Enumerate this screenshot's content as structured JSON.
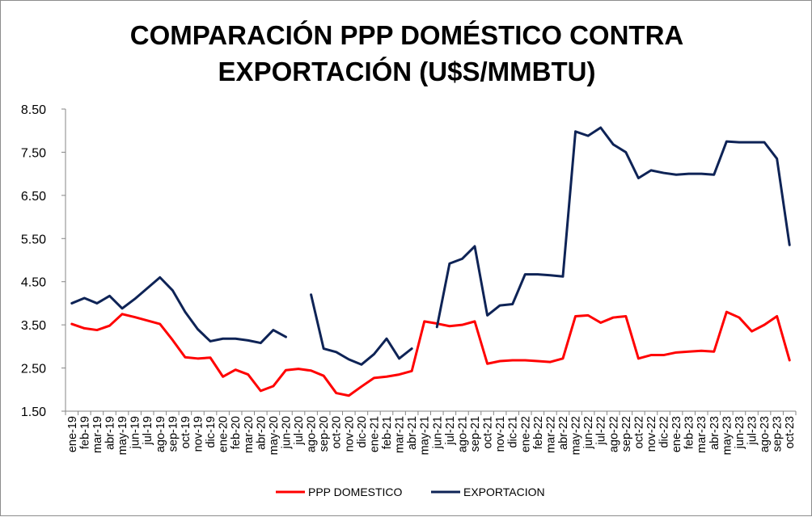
{
  "chart_data": {
    "type": "line",
    "title_lines": [
      "COMPARACIÓN PPP DOMÉSTICO CONTRA",
      "EXPORTACIÓN (U$S/MMBTU)"
    ],
    "xlabel": "",
    "ylabel": "",
    "ylim": [
      1.5,
      8.5
    ],
    "yticks": [
      "1.50",
      "2.50",
      "3.50",
      "4.50",
      "5.50",
      "6.50",
      "7.50",
      "8.50"
    ],
    "grid": false,
    "legend_position": "bottom",
    "categories": [
      "ene-19",
      "feb-19",
      "mar-19",
      "abr-19",
      "may-19",
      "jun-19",
      "jul-19",
      "ago-19",
      "sep-19",
      "oct-19",
      "nov-19",
      "dic-19",
      "ene-20",
      "feb-20",
      "mar-20",
      "abr-20",
      "may-20",
      "jun-20",
      "jul-20",
      "ago-20",
      "sep-20",
      "oct-20",
      "nov-20",
      "dic-20",
      "ene-21",
      "feb-21",
      "mar-21",
      "abr-21",
      "may-21",
      "jun-21",
      "jul-21",
      "ago-21",
      "sep-21",
      "oct-21",
      "nov-21",
      "dic-21",
      "ene-22",
      "feb-22",
      "mar-22",
      "abr-22",
      "may-22",
      "jun-22",
      "jul-22",
      "ago-22",
      "sep-22",
      "oct-22",
      "nov-22",
      "dic-22",
      "ene-23",
      "feb-23",
      "mar-23",
      "abr-23",
      "may-23",
      "jun-23",
      "jul-23",
      "ago-23",
      "sep-23",
      "oct-23"
    ],
    "series": [
      {
        "name": "PPP DOMESTICO",
        "color": "#ff0000",
        "values": [
          3.52,
          3.42,
          3.38,
          3.48,
          3.75,
          3.68,
          3.6,
          3.52,
          3.15,
          2.75,
          2.72,
          2.74,
          2.3,
          2.46,
          2.35,
          1.97,
          2.08,
          2.45,
          2.48,
          2.44,
          2.32,
          1.92,
          1.86,
          2.07,
          2.27,
          2.3,
          2.35,
          2.43,
          3.58,
          3.53,
          3.47,
          3.5,
          3.58,
          2.6,
          2.66,
          2.68,
          2.68,
          2.66,
          2.64,
          2.72,
          3.7,
          3.72,
          3.55,
          3.67,
          3.7,
          2.72,
          2.8,
          2.8,
          2.86,
          2.88,
          2.9,
          2.88,
          3.8,
          3.67,
          3.35,
          3.5,
          3.7,
          2.68
        ]
      },
      {
        "name": "EXPORTACION",
        "color": "#0e2356",
        "values": [
          4.0,
          4.12,
          4.0,
          4.17,
          3.88,
          4.1,
          4.35,
          4.6,
          4.3,
          3.8,
          3.4,
          3.12,
          3.18,
          3.18,
          3.14,
          3.08,
          3.38,
          3.22,
          null,
          4.2,
          2.95,
          2.87,
          2.7,
          2.58,
          2.82,
          3.18,
          2.72,
          2.95,
          null,
          3.45,
          4.92,
          5.03,
          5.32,
          3.72,
          3.95,
          3.98,
          4.67,
          4.67,
          4.65,
          4.62,
          7.98,
          7.88,
          8.07,
          7.68,
          7.5,
          6.9,
          7.08,
          7.02,
          6.98,
          7.0,
          7.0,
          6.98,
          7.75,
          7.73,
          7.73,
          7.73,
          7.35,
          5.35
        ]
      }
    ]
  }
}
